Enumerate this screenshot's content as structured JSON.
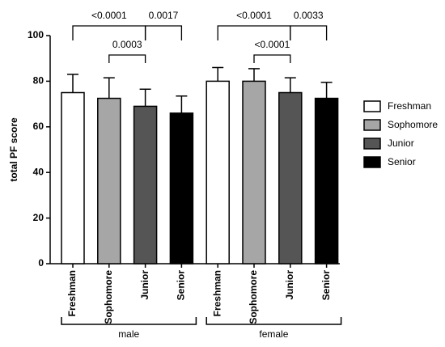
{
  "chart_data": {
    "type": "bar",
    "y_label": "total PF score",
    "groups": [
      "male",
      "female"
    ],
    "series": [
      {
        "name": "Freshman",
        "color": "#ffffff",
        "values": [
          75,
          80
        ],
        "errors": [
          8,
          6
        ]
      },
      {
        "name": "Sophomore",
        "color": "#a6a6a6",
        "values": [
          72.5,
          80
        ],
        "errors": [
          9,
          5.5
        ]
      },
      {
        "name": "Junior",
        "color": "#555555",
        "values": [
          69,
          75
        ],
        "errors": [
          7.5,
          6.5
        ]
      },
      {
        "name": "Senior",
        "color": "#000000",
        "values": [
          66,
          72.5
        ],
        "errors": [
          7.5,
          7
        ]
      }
    ],
    "ylim": [
      0,
      100
    ],
    "yticks": [
      0,
      20,
      40,
      60,
      80,
      100
    ],
    "legend": "right",
    "comparisons": [
      {
        "group": 0,
        "from": 0,
        "to": 2,
        "label": "<0.0001"
      },
      {
        "group": 0,
        "from": 1,
        "to": 2,
        "label": "0.0003"
      },
      {
        "group": 0,
        "from": 2,
        "to": 3,
        "label": "0.0017"
      },
      {
        "group": 1,
        "from": 0,
        "to": 2,
        "label": "<0.0001"
      },
      {
        "group": 1,
        "from": 1,
        "to": 2,
        "label": "<0.0001"
      },
      {
        "group": 1,
        "from": 2,
        "to": 3,
        "label": "0.0033"
      }
    ]
  }
}
